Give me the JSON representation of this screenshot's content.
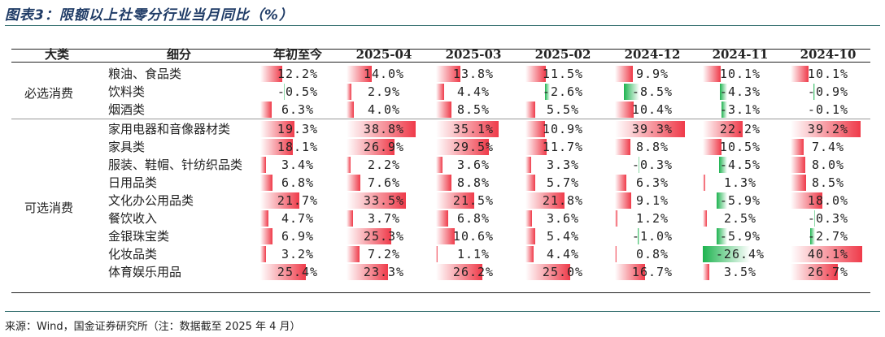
{
  "title": "图表3：限额以上社零分行业当月同比（%）",
  "headers": [
    "大类",
    "细分",
    "年初至今",
    "2025-04",
    "2025-03",
    "2025-02",
    "2024-12",
    "2024-11",
    "2024-10"
  ],
  "groups": [
    {
      "name": "必选消费",
      "rows": [
        {
          "label": "粮油、食品类",
          "values": [
            "12.2%",
            "14.0%",
            "13.8%",
            "11.5%",
            "9.9%",
            "10.1%",
            "10.1%"
          ],
          "nums": [
            12.2,
            14.0,
            13.8,
            11.5,
            9.9,
            10.1,
            10.1
          ]
        },
        {
          "label": "饮料类",
          "values": [
            "-0.5%",
            "2.9%",
            "4.4%",
            "-2.6%",
            "-8.5%",
            "-4.3%",
            "-0.9%"
          ],
          "nums": [
            -0.5,
            2.9,
            4.4,
            -2.6,
            -8.5,
            -4.3,
            -0.9
          ]
        },
        {
          "label": "烟酒类",
          "values": [
            "6.3%",
            "4.0%",
            "8.5%",
            "5.5%",
            "10.4%",
            "-3.1%",
            "-0.1%"
          ],
          "nums": [
            6.3,
            4.0,
            8.5,
            5.5,
            10.4,
            -3.1,
            -0.1
          ]
        }
      ]
    },
    {
      "name": "可选消费",
      "rows": [
        {
          "label": "家用电器和音像器材类",
          "values": [
            "19.3%",
            "38.8%",
            "35.1%",
            "10.9%",
            "39.3%",
            "22.2%",
            "39.2%"
          ],
          "nums": [
            19.3,
            38.8,
            35.1,
            10.9,
            39.3,
            22.2,
            39.2
          ]
        },
        {
          "label": "家具类",
          "values": [
            "18.1%",
            "26.9%",
            "29.5%",
            "11.7%",
            "8.8%",
            "10.5%",
            "7.4%"
          ],
          "nums": [
            18.1,
            26.9,
            29.5,
            11.7,
            8.8,
            10.5,
            7.4
          ]
        },
        {
          "label": "服装、鞋帽、针纺织品类",
          "values": [
            "3.4%",
            "2.2%",
            "3.6%",
            "3.3%",
            "-0.3%",
            "-4.5%",
            "8.0%"
          ],
          "nums": [
            3.4,
            2.2,
            3.6,
            3.3,
            -0.3,
            -4.5,
            8.0
          ]
        },
        {
          "label": "日用品类",
          "values": [
            "6.8%",
            "7.6%",
            "8.8%",
            "5.7%",
            "6.3%",
            "1.3%",
            "8.5%"
          ],
          "nums": [
            6.8,
            7.6,
            8.8,
            5.7,
            6.3,
            1.3,
            8.5
          ]
        },
        {
          "label": "文化办公用品类",
          "values": [
            "21.7%",
            "33.5%",
            "21.5%",
            "21.8%",
            "9.1%",
            "-5.9%",
            "18.0%"
          ],
          "nums": [
            21.7,
            33.5,
            21.5,
            21.8,
            9.1,
            -5.9,
            18.0
          ]
        },
        {
          "label": "餐饮收入",
          "values": [
            "4.7%",
            "3.7%",
            "6.8%",
            "3.6%",
            "1.2%",
            "2.5%",
            "-0.3%"
          ],
          "nums": [
            4.7,
            3.7,
            6.8,
            3.6,
            1.2,
            2.5,
            -0.3
          ]
        },
        {
          "label": "金银珠宝类",
          "values": [
            "6.9%",
            "25.3%",
            "10.6%",
            "5.4%",
            "-1.0%",
            "-5.9%",
            "-2.7%"
          ],
          "nums": [
            6.9,
            25.3,
            10.6,
            5.4,
            -1.0,
            -5.9,
            -2.7
          ]
        },
        {
          "label": "化妆品类",
          "values": [
            "3.2%",
            "7.2%",
            "1.1%",
            "4.4%",
            "0.8%",
            "-26.4%",
            "40.1%"
          ],
          "nums": [
            3.2,
            7.2,
            1.1,
            4.4,
            0.8,
            -26.4,
            40.1
          ]
        },
        {
          "label": "体育娱乐用品",
          "values": [
            "25.4%",
            "23.3%",
            "26.2%",
            "25.0%",
            "16.7%",
            "3.5%",
            "26.7%"
          ],
          "nums": [
            25.4,
            23.3,
            26.2,
            25.0,
            16.7,
            3.5,
            26.7
          ]
        }
      ]
    }
  ],
  "colors": {
    "positive": "#ef3b4a",
    "negative": "#1db34f"
  },
  "footer": "来源：Wind，国金证券研究所（注：数据截至 2025 年 4 月）"
}
